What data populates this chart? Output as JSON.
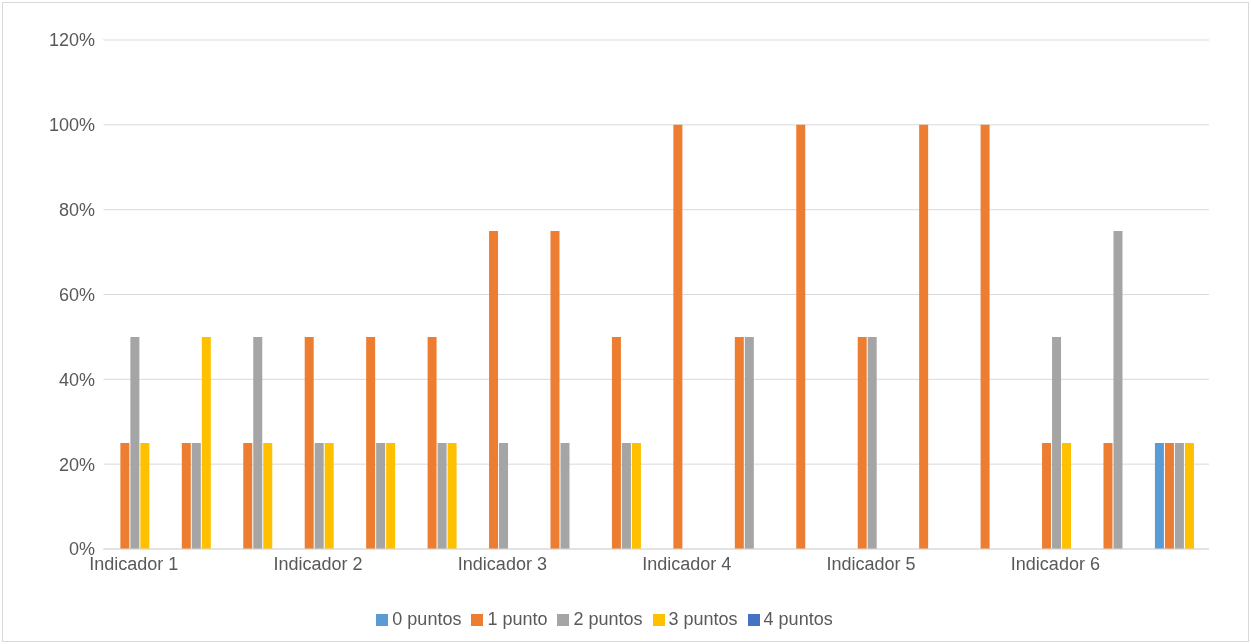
{
  "chart_data": {
    "type": "bar",
    "categories": [
      "Indicador 1",
      null,
      null,
      "Indicador 2",
      null,
      null,
      "Indicador 3",
      null,
      null,
      "Indicador 4",
      null,
      null,
      "Indicador 5",
      null,
      null,
      "Indicador 6",
      null,
      null
    ],
    "series": [
      {
        "name": "0 puntos",
        "color": "#5b9bd5",
        "values": [
          0,
          0,
          0,
          0,
          0,
          0,
          0,
          0,
          0,
          0,
          0,
          0,
          0,
          0,
          0,
          0,
          0,
          25
        ]
      },
      {
        "name": "1 punto",
        "color": "#ed7d31",
        "values": [
          25,
          25,
          25,
          50,
          50,
          50,
          75,
          75,
          50,
          100,
          50,
          100,
          50,
          100,
          100,
          25,
          25,
          25
        ]
      },
      {
        "name": "2 puntos",
        "color": "#a5a5a5",
        "values": [
          50,
          25,
          50,
          25,
          25,
          25,
          25,
          25,
          25,
          0,
          50,
          0,
          50,
          0,
          0,
          50,
          75,
          25
        ]
      },
      {
        "name": "3 puntos",
        "color": "#ffc000",
        "values": [
          25,
          50,
          25,
          25,
          25,
          25,
          0,
          0,
          25,
          0,
          0,
          0,
          0,
          0,
          0,
          25,
          0,
          25
        ]
      },
      {
        "name": "4 puntos",
        "color": "#4472c4",
        "values": [
          0,
          0,
          0,
          0,
          0,
          0,
          0,
          0,
          0,
          0,
          0,
          0,
          0,
          0,
          0,
          0,
          0,
          0
        ]
      }
    ],
    "ylim": [
      0,
      120
    ],
    "yticks": [
      {
        "value": 0,
        "label": "0%"
      },
      {
        "value": 20,
        "label": "20%"
      },
      {
        "value": 40,
        "label": "40%"
      },
      {
        "value": 60,
        "label": "60%"
      },
      {
        "value": 80,
        "label": "80%"
      },
      {
        "value": 100,
        "label": "100%"
      },
      {
        "value": 120,
        "label": "120%"
      }
    ],
    "grid": "y",
    "legend": "bottom"
  }
}
